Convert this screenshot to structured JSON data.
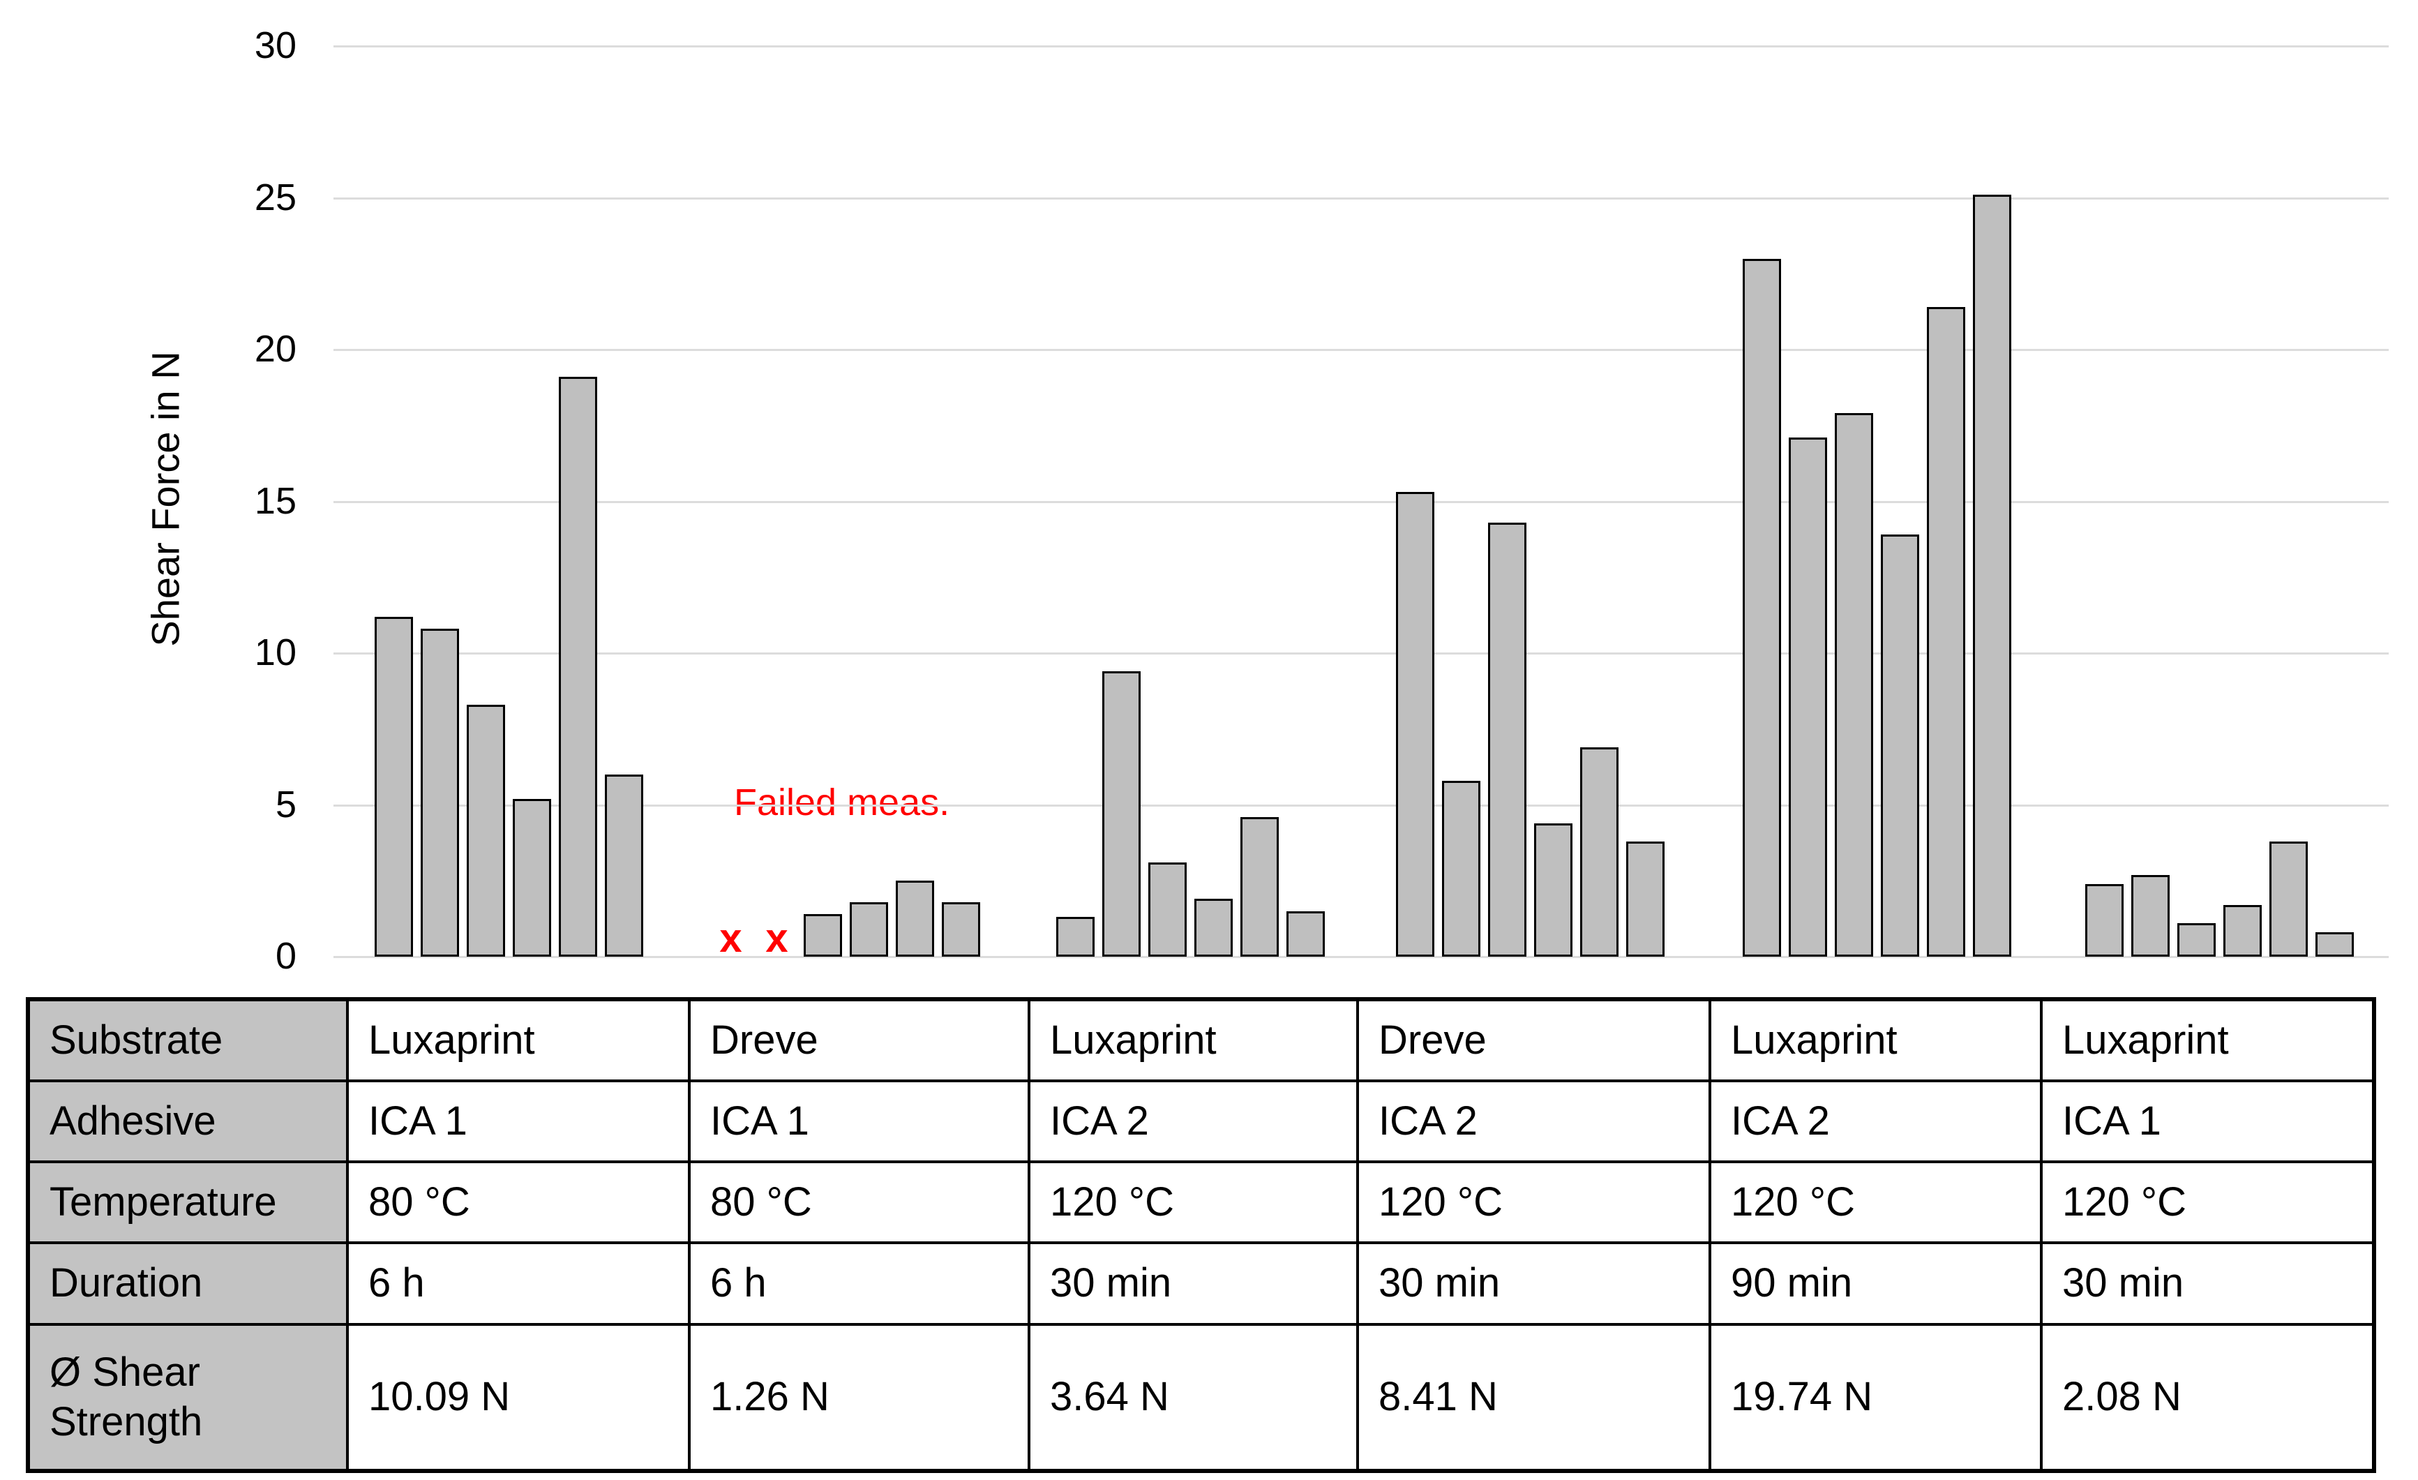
{
  "chart_data": {
    "type": "bar",
    "title": "",
    "ylabel": "Shear Force in N",
    "xlabel": "",
    "ylim": [
      0,
      30
    ],
    "yticks": [
      0,
      5,
      10,
      15,
      20,
      25,
      30
    ],
    "grid": "horizontal",
    "legend_position": "none",
    "bar_fill": "#bfbfbf",
    "bar_stroke": "#000000",
    "gridline_color": "#dcdcdc",
    "annotation": {
      "text": "Failed meas.",
      "color": "#ff0000",
      "marker_glyph": "x",
      "group": 2,
      "failed_slots": [
        0,
        1
      ]
    },
    "groups": [
      {
        "substrate": "Luxaprint",
        "adhesive": "ICA 1",
        "temperature": "80 °C",
        "duration": "6 h",
        "avg_shear_strength": "10.09 N",
        "bar_values": [
          11.2,
          10.8,
          8.3,
          5.2,
          19.1,
          6.0
        ]
      },
      {
        "substrate": "Dreve",
        "adhesive": "ICA 1",
        "temperature": "80 °C",
        "duration": "6 h",
        "avg_shear_strength": "1.26 N",
        "bar_values": [
          null,
          null,
          1.4,
          1.8,
          2.5,
          1.8
        ]
      },
      {
        "substrate": "Luxaprint",
        "adhesive": "ICA 2",
        "temperature": "120 °C",
        "duration": "30 min",
        "avg_shear_strength": "3.64 N",
        "bar_values": [
          1.3,
          9.4,
          3.1,
          1.9,
          4.6,
          1.5
        ]
      },
      {
        "substrate": "Dreve",
        "adhesive": "ICA 2",
        "temperature": "120 °C",
        "duration": "30 min",
        "avg_shear_strength": "8.41 N",
        "bar_values": [
          15.3,
          5.8,
          14.3,
          4.4,
          6.9,
          3.8
        ]
      },
      {
        "substrate": "Luxaprint",
        "adhesive": "ICA 2",
        "temperature": "120 °C",
        "duration": "90 min",
        "avg_shear_strength": "19.74 N",
        "bar_values": [
          23.0,
          17.1,
          17.9,
          13.9,
          21.4,
          25.1
        ]
      },
      {
        "substrate": "Luxaprint",
        "adhesive": "ICA 1",
        "temperature": "120 °C",
        "duration": "30 min",
        "avg_shear_strength": "2.08 N",
        "bar_values": [
          2.4,
          2.7,
          1.1,
          1.7,
          3.8,
          0.8
        ]
      }
    ]
  },
  "table": {
    "row_labels": [
      "Substrate",
      "Adhesive",
      "Temperature",
      "Duration",
      "Ø Shear Strength"
    ],
    "row_keys": [
      "substrate",
      "adhesive",
      "temperature",
      "duration",
      "avg_shear_strength"
    ],
    "header_bg": "#c3c3c3"
  }
}
